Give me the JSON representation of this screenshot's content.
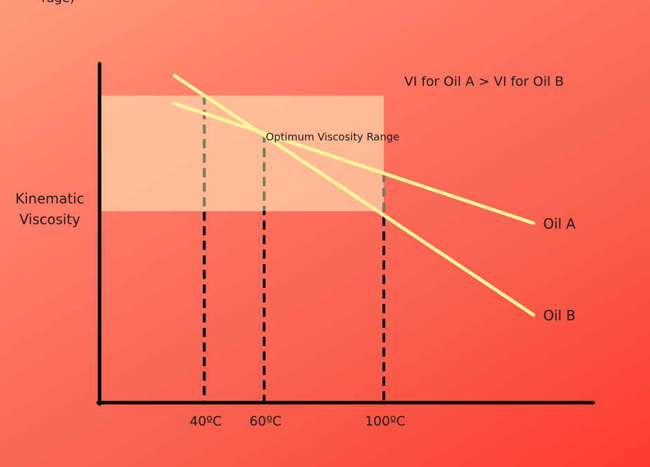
{
  "top_fragment": "rage)",
  "chart_data": {
    "type": "line",
    "title": "",
    "annotation": "VI for Oil A > VI for Oil B",
    "band_label": "Optimum Viscosity Range",
    "ylabel_lines": [
      "Kinematic",
      "Viscosity"
    ],
    "xlabel": "",
    "grid": false,
    "x_markers": [
      {
        "label": "40ºC",
        "temp": 40
      },
      {
        "label": "60ºC",
        "temp": 60
      },
      {
        "label": "100ºC",
        "temp": 100
      }
    ],
    "series": [
      {
        "name": "Oil A",
        "color": "#fff59a",
        "x": [
          30,
          150
        ],
        "y": [
          75,
          45
        ]
      },
      {
        "name": "Oil B",
        "color": "#fff59a",
        "x": [
          30,
          150
        ],
        "y": [
          82,
          22
        ]
      }
    ],
    "band": {
      "y_min": 48,
      "y_max": 77,
      "x_max": 100
    },
    "xlim": [
      5,
      170
    ],
    "ylim": [
      0,
      85
    ],
    "colors": {
      "axis": "#000000",
      "band": "#ffd5aa",
      "line": "#fff59a"
    }
  }
}
